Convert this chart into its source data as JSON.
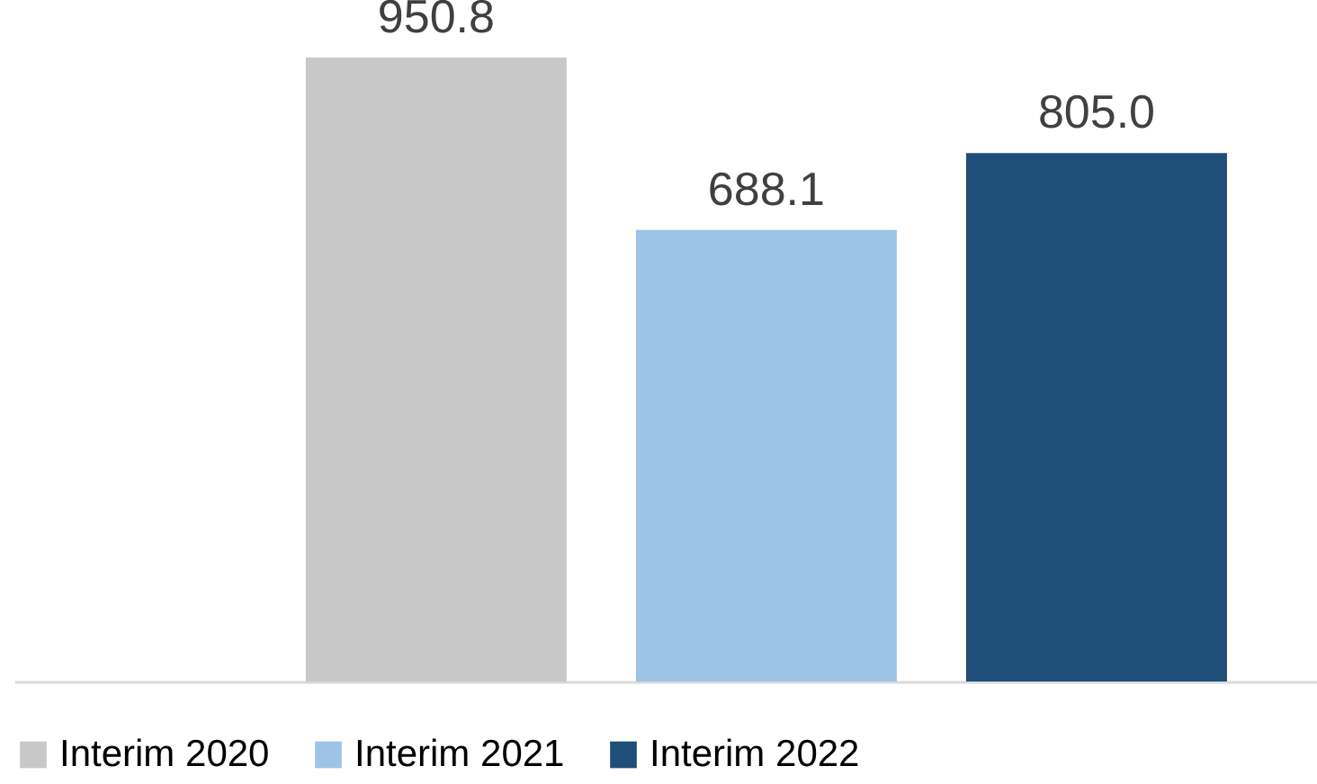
{
  "chart_data": {
    "type": "bar",
    "categories": [
      null
    ],
    "series": [
      {
        "name": "Interim 2020",
        "color": "#c8c8c8",
        "values": [
          950.8
        ],
        "value_labels": [
          "950.8"
        ]
      },
      {
        "name": "Interim 2021",
        "color": "#9dc3e6",
        "values": [
          688.1
        ],
        "value_labels": [
          "688.1"
        ]
      },
      {
        "name": "Interim 2022",
        "color": "#1f4e79",
        "values": [
          805.0
        ],
        "value_labels": [
          "805.0"
        ]
      }
    ],
    "legend": "bottom",
    "tick_labels": false
  }
}
